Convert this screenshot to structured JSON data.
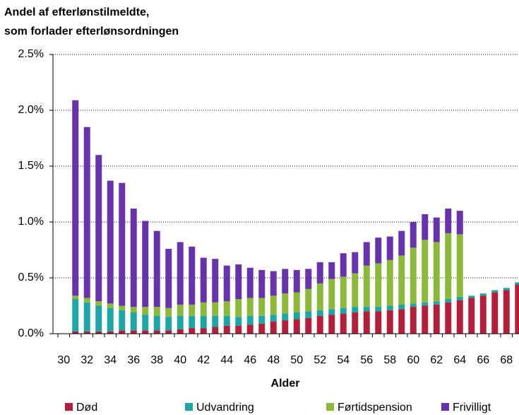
{
  "chart_data": {
    "type": "stacked-bar",
    "title": [
      "Andel af efterlønstilmeldte,",
      "som forlader efterlønsordningen"
    ],
    "x_label": "Alder",
    "categories": [
      "30",
      null,
      "32",
      null,
      "34",
      null,
      "36",
      null,
      "38",
      null,
      "40",
      null,
      "42",
      null,
      "44",
      null,
      "46",
      null,
      "48",
      null,
      "50",
      null,
      "52",
      null,
      "54",
      null,
      "56",
      null,
      "58",
      null,
      "60",
      null,
      "62",
      null,
      "64",
      null,
      "66",
      null,
      "68",
      null
    ],
    "series": [
      {
        "name": "Død",
        "color": "#b0203a",
        "values": [
          null,
          0.02,
          0.02,
          0.02,
          0.02,
          0.03,
          0.03,
          0.03,
          0.03,
          0.03,
          0.04,
          0.05,
          0.05,
          0.06,
          0.07,
          0.07,
          0.08,
          0.09,
          0.11,
          0.12,
          0.13,
          0.14,
          0.16,
          0.17,
          0.18,
          0.19,
          0.2,
          0.2,
          0.21,
          0.22,
          0.24,
          0.25,
          0.26,
          0.28,
          0.3,
          0.32,
          0.34,
          0.37,
          0.39,
          0.44
        ]
      },
      {
        "name": "Udvandring",
        "color": "#1fa5a5",
        "values": [
          null,
          0.29,
          0.26,
          0.23,
          0.21,
          0.18,
          0.16,
          0.14,
          0.13,
          0.12,
          0.12,
          0.11,
          0.11,
          0.1,
          0.09,
          0.08,
          0.08,
          0.07,
          0.06,
          0.06,
          0.06,
          0.06,
          0.05,
          0.05,
          0.05,
          0.05,
          0.04,
          0.04,
          0.04,
          0.04,
          0.03,
          0.03,
          0.03,
          0.03,
          0.03,
          0.02,
          0.02,
          0.02,
          0.02,
          0.02
        ]
      },
      {
        "name": "Førtidspension",
        "color": "#8cb83c",
        "values": [
          null,
          0.03,
          0.04,
          0.04,
          0.04,
          0.04,
          0.05,
          0.07,
          0.08,
          0.08,
          0.1,
          0.1,
          0.12,
          0.12,
          0.13,
          0.16,
          0.16,
          0.16,
          0.17,
          0.18,
          0.18,
          0.2,
          0.24,
          0.27,
          0.28,
          0.3,
          0.37,
          0.39,
          0.41,
          0.44,
          0.5,
          0.56,
          0.53,
          0.59,
          0.56,
          0,
          0,
          0,
          0,
          0
        ]
      },
      {
        "name": "Frivilligt",
        "color": "#6633aa",
        "values": [
          null,
          1.75,
          1.53,
          1.31,
          1.1,
          1.1,
          0.88,
          0.77,
          0.68,
          0.53,
          0.56,
          0.52,
          0.4,
          0.39,
          0.32,
          0.31,
          0.27,
          0.25,
          0.22,
          0.22,
          0.2,
          0.18,
          0.19,
          0.15,
          0.21,
          0.19,
          0.21,
          0.23,
          0.21,
          0.22,
          0.23,
          0.23,
          0.22,
          0.22,
          0.21,
          0,
          0,
          0,
          0,
          0
        ]
      }
    ],
    "ylim": [
      0,
      2.5
    ],
    "yticks": [
      {
        "value": 0,
        "label": "0.0%"
      },
      {
        "value": 0.5,
        "label": "0.5%"
      },
      {
        "value": 1,
        "label": "1.0%"
      },
      {
        "value": 1.5,
        "label": "1.5%"
      },
      {
        "value": 2,
        "label": "2.0%"
      },
      {
        "value": 2.5,
        "label": "2.5%"
      }
    ],
    "grid": true,
    "legend": "bottom"
  }
}
